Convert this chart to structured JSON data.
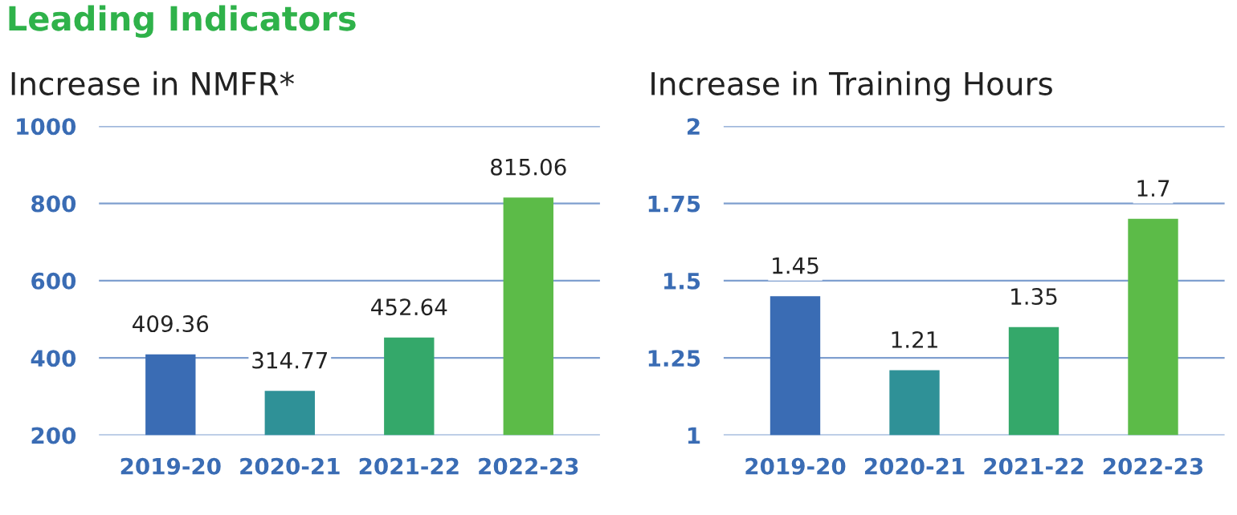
{
  "chart_data": [
    {
      "type": "bar",
      "title": "Increase in NMFR*",
      "annotations": [
        "Leading Indicators"
      ],
      "categories": [
        "2019-20",
        "2020-21",
        "2021-22",
        "2022-23"
      ],
      "values": [
        409.36,
        314.77,
        452.64,
        815.06
      ],
      "colors": [
        "#3a6cb4",
        "#2f9197",
        "#34a86a",
        "#5cbb48"
      ],
      "ylim": [
        200,
        1000
      ],
      "yticks": [
        200,
        400,
        600,
        800,
        1000
      ],
      "grid": "y",
      "data_labels": true
    },
    {
      "type": "bar",
      "title": "Increase in Training Hours",
      "categories": [
        "2019-20",
        "2020-21",
        "2021-22",
        "2022-23"
      ],
      "values": [
        1.45,
        1.21,
        1.35,
        1.7
      ],
      "colors": [
        "#3a6cb4",
        "#2f9197",
        "#34a86a",
        "#5cbb48"
      ],
      "ylim": [
        1,
        2
      ],
      "yticks": [
        1,
        1.25,
        1.5,
        1.75,
        2
      ],
      "grid": "y",
      "data_labels": true
    }
  ]
}
